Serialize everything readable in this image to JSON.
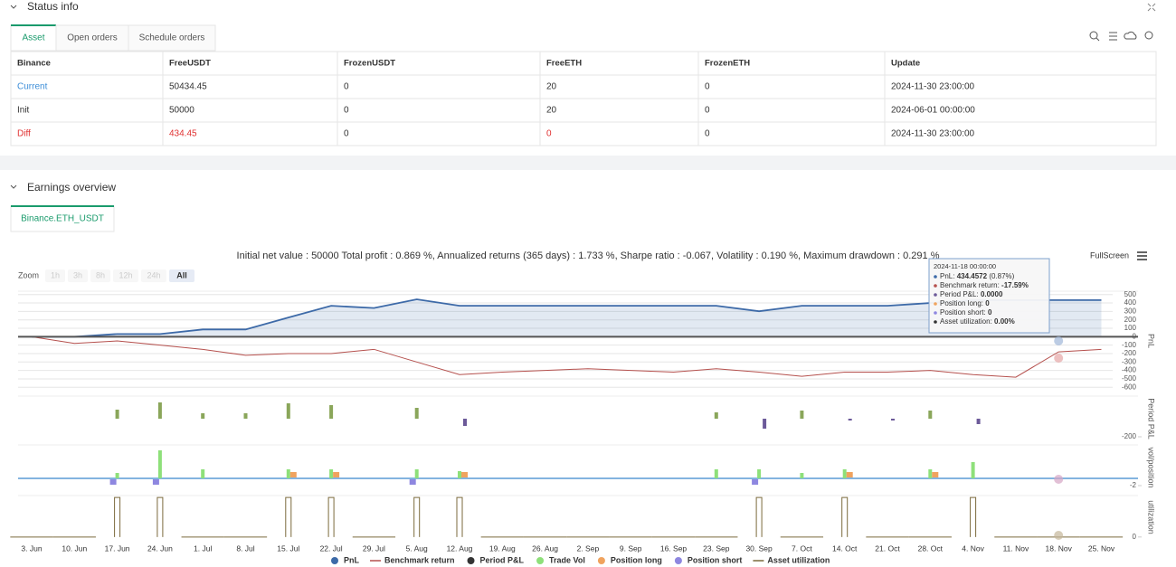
{
  "status_info": {
    "title": "Status info",
    "tabs": [
      "Asset",
      "Open orders",
      "Schedule orders"
    ],
    "table": {
      "header": [
        "Binance",
        "FreeUSDT",
        "FrozenUSDT",
        "FreeETH",
        "FrozenETH",
        "Update"
      ],
      "rows": [
        [
          "Current",
          "50434.45",
          "0",
          "20",
          "0",
          "2024-11-30 23:00:00"
        ],
        [
          "Init",
          "50000",
          "0",
          "20",
          "0",
          "2024-06-01 00:00:00"
        ],
        [
          "Diff",
          "434.45",
          "0",
          "0",
          "0",
          "2024-11-30 23:00:00"
        ]
      ]
    }
  },
  "earnings_overview": {
    "title": "Earnings overview",
    "tab": "Binance.ETH_USDT",
    "summary": "Initial net value : 50000 Total profit : 0.869 %, Annualized returns (365 days) : 1.733 %, Sharpe ratio : -0.067, Volatility : 0.190 %, Maximum drawdown : 0.291 %",
    "zoom_label": "Zoom",
    "zoom_buttons": [
      "1h",
      "3h",
      "8h",
      "12h",
      "24h",
      "All"
    ],
    "fullscreen": "FullScreen",
    "tooltip": {
      "title": "2024-11-18 00:00:00",
      "rows": [
        {
          "label": "PnL:",
          "value": "434.4572",
          "note": "(0.87%)",
          "color": "#3d6aa8"
        },
        {
          "label": "Benchmark return:",
          "value": "-17.59%",
          "color": "#b5504d"
        },
        {
          "label": "Period P&L:",
          "value": "0.0000",
          "color": "#6c5a99"
        },
        {
          "label": "Position long:",
          "value": "0",
          "color": "#f0a35e"
        },
        {
          "label": "Position short:",
          "value": "0",
          "color": "#8e87e0"
        },
        {
          "label": "Asset utilization:",
          "value": "0.00%",
          "color": "#333333"
        }
      ]
    }
  },
  "chart_data": [
    {
      "type": "line",
      "y_label": "PnL",
      "categories": [
        "3. Jun",
        "10. Jun",
        "17. Jun",
        "24. Jun",
        "1. Jul",
        "8. Jul",
        "15. Jul",
        "22. Jul",
        "29. Jul",
        "5. Aug",
        "12. Aug",
        "19. Aug",
        "26. Aug",
        "2. Sep",
        "9. Sep",
        "16. Sep",
        "23. Sep",
        "30. Sep",
        "7. Oct",
        "14. Oct",
        "21. Oct",
        "28. Oct",
        "4. Nov",
        "11. Nov",
        "18. Nov",
        "25. Nov"
      ],
      "ylim": [
        -640,
        540
      ],
      "yticks": [
        500,
        400,
        300,
        200,
        100,
        0,
        -100,
        -200,
        -300,
        -400,
        -500,
        -600
      ],
      "grid": true,
      "series": [
        {
          "name": "PnL",
          "color": "#3d6aa8",
          "legend_symbol": "circle",
          "fill": true,
          "values": [
            0,
            0,
            32,
            32,
            86,
            86,
            227,
            367,
            340,
            443,
            367,
            367,
            367,
            367,
            367,
            367,
            367,
            302,
            367,
            367,
            367,
            400,
            434,
            434,
            434,
            434
          ]
        },
        {
          "name": "Benchmark return",
          "color": "#b5504d",
          "legend_symbol": "line",
          "values": [
            0,
            -80,
            -50,
            -100,
            -150,
            -220,
            -200,
            -200,
            -150,
            -300,
            -450,
            -420,
            -400,
            -380,
            -400,
            -420,
            -380,
            -420,
            -470,
            -420,
            -420,
            -400,
            -450,
            -480,
            -180,
            -150
          ]
        }
      ]
    },
    {
      "type": "bar",
      "y_label": "Period P&L",
      "ylim": [
        -250,
        250
      ],
      "yticks": [
        -200
      ],
      "bar_colors": {
        "positive": "#8aa65a",
        "negative": "#6c5a99"
      },
      "series": [
        {
          "name": "Period P&L",
          "color": "#333333",
          "legend_symbol": "circle",
          "values": [
            null,
            null,
            100,
            180,
            60,
            60,
            170,
            150,
            null,
            120,
            -80,
            null,
            null,
            null,
            null,
            null,
            70,
            -110,
            90,
            -20,
            -20,
            90,
            -60,
            null,
            null,
            null
          ]
        }
      ]
    },
    {
      "type": "bar",
      "y_label": "vol/position",
      "ylim": [
        -3.25,
        9.25
      ],
      "yticks": [
        -2
      ],
      "baseline_color": "#5a9bd5",
      "series": [
        {
          "name": "Trade Vol",
          "color": "#8ee07a",
          "legend_symbol": "circle",
          "values": [
            null,
            null,
            1.5,
            7.75,
            2.5,
            null,
            2.5,
            2.5,
            null,
            2.5,
            2,
            null,
            null,
            null,
            null,
            null,
            2.5,
            2.5,
            1.5,
            2.5,
            null,
            2.5,
            4.5,
            null,
            null,
            null
          ]
        },
        {
          "name": "Position long",
          "color": "#f0a35e",
          "legend_symbol": "circle",
          "values": [
            null,
            null,
            null,
            null,
            null,
            null,
            1,
            1,
            null,
            null,
            1,
            null,
            null,
            null,
            null,
            null,
            null,
            null,
            null,
            1,
            null,
            1,
            null,
            null,
            null,
            null
          ]
        },
        {
          "name": "Position short",
          "color": "#8e87e0",
          "legend_symbol": "circle",
          "values": [
            null,
            null,
            -1,
            -1,
            null,
            null,
            null,
            null,
            null,
            -1,
            null,
            null,
            null,
            null,
            null,
            null,
            null,
            -1,
            null,
            null,
            null,
            null,
            null,
            null,
            null,
            null
          ]
        }
      ]
    },
    {
      "type": "pulse",
      "y_label": "utilization",
      "ylim": [
        -5,
        105
      ],
      "yticks": [
        0
      ],
      "series": [
        {
          "name": "Asset utilization",
          "color": "#7b6a3c",
          "legend_symbol": "line",
          "values": [
            0,
            0,
            100,
            100,
            0,
            0,
            100,
            100,
            0,
            100,
            100,
            0,
            0,
            0,
            0,
            0,
            0,
            100,
            0,
            100,
            0,
            0,
            100,
            0,
            0,
            0
          ]
        }
      ]
    }
  ]
}
